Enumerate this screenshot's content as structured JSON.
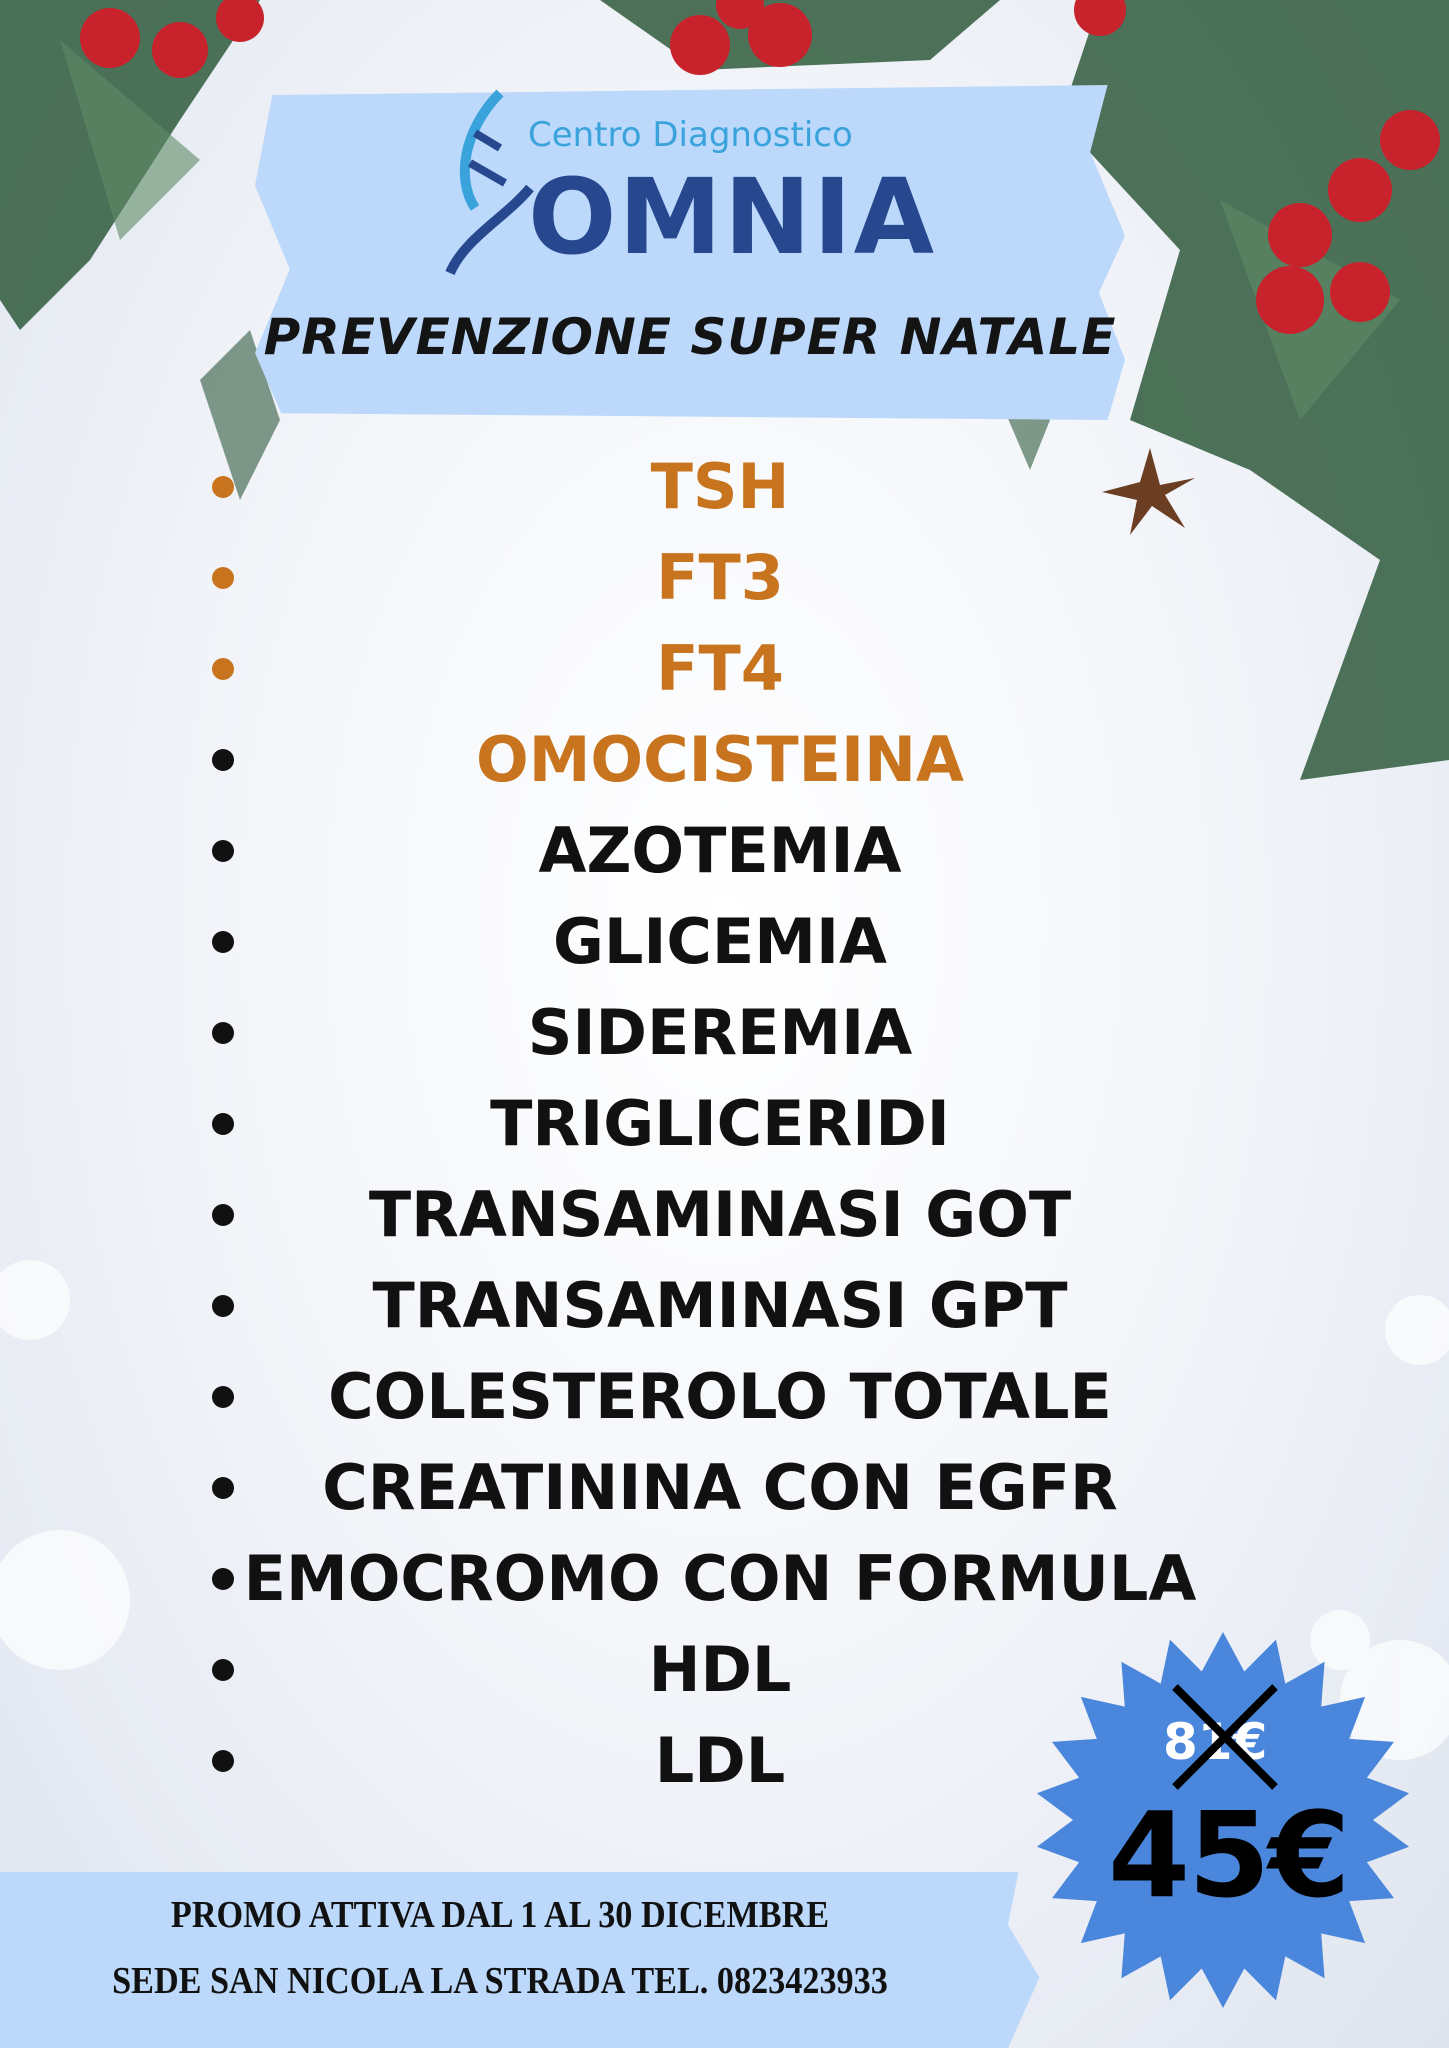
{
  "brand": {
    "subtitle": "Centro Diagnostico",
    "name": "OMNIA",
    "primary_color": "#27488f",
    "secondary_color": "#3aa3dc"
  },
  "title": "PREVENZIONE SUPER NATALE",
  "tests": [
    {
      "label": "TSH",
      "highlight": true
    },
    {
      "label": "FT3",
      "highlight": true
    },
    {
      "label": "FT4",
      "highlight": true
    },
    {
      "label": "OMOCISTEINA",
      "highlight": true
    },
    {
      "label": "AZOTEMIA",
      "highlight": false
    },
    {
      "label": "GLICEMIA",
      "highlight": false
    },
    {
      "label": "SIDEREMIA",
      "highlight": false
    },
    {
      "label": "TRIGLICERIDI",
      "highlight": false
    },
    {
      "label": "TRANSAMINASI GOT",
      "highlight": false
    },
    {
      "label": "TRANSAMINASI GPT",
      "highlight": false
    },
    {
      "label": "COLESTEROLO TOTALE",
      "highlight": false
    },
    {
      "label": "CREATININA CON EGFR",
      "highlight": false
    },
    {
      "label": "EMOCROMO CON FORMULA",
      "highlight": false
    },
    {
      "label": "HDL",
      "highlight": false
    },
    {
      "label": "LDL",
      "highlight": false
    }
  ],
  "price": {
    "old": "81€",
    "new": "45€",
    "badge_color": "#4a87dc"
  },
  "footer": {
    "promo": "PROMO ATTIVA DAL 1 AL 30 DICEMBRE",
    "contact": "SEDE SAN NICOLA LA STRADA  TEL. 0823423933"
  },
  "colors": {
    "highlight": "#c8741e",
    "banner": "#bcd9fb"
  }
}
